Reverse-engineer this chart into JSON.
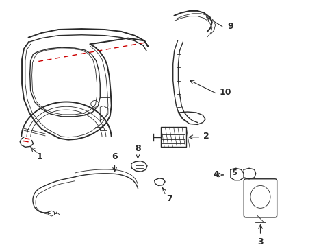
{
  "bg_color": "#ffffff",
  "line_color": "#2a2a2a",
  "red_color": "#cc0000",
  "label_color": "#1a1a1a",
  "lw_main": 1.4,
  "lw_med": 1.0,
  "lw_thin": 0.6,
  "label_fontsize": 9
}
